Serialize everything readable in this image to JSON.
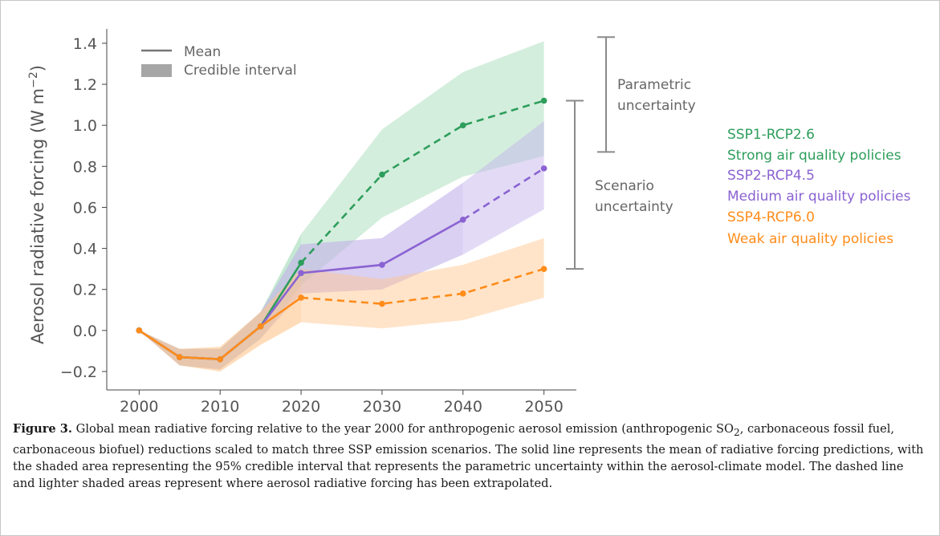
{
  "caption": {
    "label": "Figure 3.",
    "text_before_sub": "Global mean radiative forcing relative to the year 2000 for anthropogenic aerosol emission (anthropogenic SO",
    "subscript": "2",
    "text_after_sub": ", carbonaceous fossil fuel, carbonaceous biofuel) reductions scaled to match three SSP emission scenarios. The solid line represents the mean of radiative forcing predictions, with the shaded area representing the 95% credible interval that represents the parametric uncertainty within the aerosol-climate model. The dashed line and lighter shaded areas represent where aerosol radiative forcing has been extrapolated."
  },
  "chart_data": {
    "type": "line",
    "ylabel": "Aerosol radiative forcing (W m⁻²)",
    "ylabel_parts": {
      "main": "Aerosol radiative forcing (W m",
      "sup": "−2",
      "close": ")"
    },
    "xlim": [
      1996,
      2054
    ],
    "ylim": [
      -0.29,
      1.47
    ],
    "xticks": [
      2000,
      2010,
      2020,
      2030,
      2040,
      2050
    ],
    "yticks": [
      -0.2,
      0.0,
      0.2,
      0.4,
      0.6,
      0.8,
      1.0,
      1.2,
      1.4
    ],
    "ytick_labels": [
      "−0.2",
      "0.0",
      "0.2",
      "0.4",
      "0.6",
      "0.8",
      "1.0",
      "1.2",
      "1.4"
    ],
    "x": [
      2000,
      2005,
      2010,
      2015,
      2020,
      2030,
      2040,
      2050
    ],
    "solid_until": 2020,
    "solid_until_ssp2": 2040,
    "grid": false,
    "legend": {
      "placement": "top-left",
      "mean_label": "Mean",
      "interval_label": "Credible interval"
    },
    "series": [
      {
        "name": "SSP1-RCP2.6",
        "subtitle": "Strong air quality policies",
        "color": "#2e9e5c",
        "fill": "#9fd9b4",
        "mean": [
          0.0,
          -0.13,
          -0.14,
          0.02,
          0.33,
          0.76,
          1.0,
          1.12
        ],
        "lower": [
          0.0,
          -0.17,
          -0.19,
          -0.04,
          0.22,
          0.55,
          0.75,
          0.85
        ],
        "upper": [
          0.0,
          -0.09,
          -0.09,
          0.09,
          0.47,
          0.98,
          1.26,
          1.41
        ]
      },
      {
        "name": "SSP2-RCP4.5",
        "subtitle": "Medium air quality policies",
        "color": "#8a63d2",
        "fill": "#c2b0ea",
        "mean": [
          0.0,
          -0.13,
          -0.14,
          0.02,
          0.28,
          0.32,
          0.54,
          0.79
        ],
        "lower": [
          0.0,
          -0.17,
          -0.19,
          -0.04,
          0.18,
          0.2,
          0.37,
          0.59
        ],
        "upper": [
          0.0,
          -0.09,
          -0.09,
          0.09,
          0.42,
          0.45,
          0.72,
          1.02
        ]
      },
      {
        "name": "SSP4-RCP6.0",
        "subtitle": "Weak air quality policies",
        "color": "#ff8c1a",
        "fill": "#ffc48a",
        "mean": [
          0.0,
          -0.13,
          -0.14,
          0.02,
          0.16,
          0.13,
          0.18,
          0.3
        ],
        "lower": [
          0.0,
          -0.17,
          -0.2,
          -0.07,
          0.04,
          0.01,
          0.05,
          0.16
        ],
        "upper": [
          0.0,
          -0.09,
          -0.08,
          0.09,
          0.3,
          0.25,
          0.32,
          0.45
        ]
      }
    ],
    "annotations": {
      "parametric": {
        "line1": "Parametric",
        "line2": "uncertainty",
        "y_range": [
          0.87,
          1.43
        ]
      },
      "scenario": {
        "line1": "Scenario",
        "line2": "uncertainty",
        "y_range": [
          0.3,
          1.12
        ]
      }
    }
  }
}
